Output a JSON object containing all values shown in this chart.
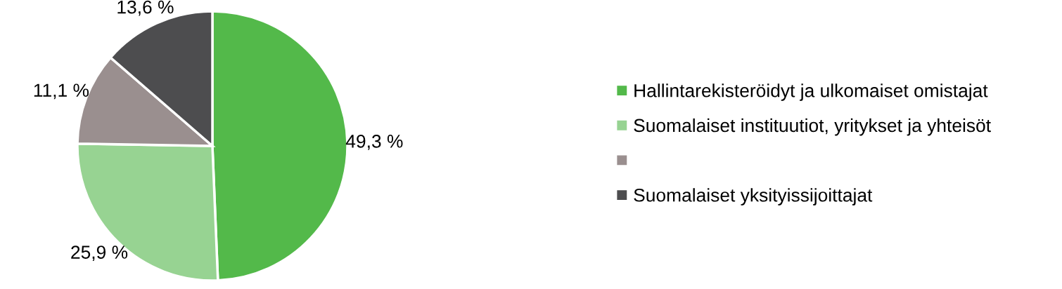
{
  "chart_data": {
    "type": "pie",
    "categories": [
      "Hallintarekisteröidyt ja ulkomaiset omistajat",
      "Suomalaiset instituutiot, yritykset ja yhteisöt",
      null,
      "Suomalaiset yksityissijoittajat"
    ],
    "values": [
      49.3,
      25.9,
      11.1,
      13.6
    ],
    "colors": [
      "#53b94a",
      "#97d392",
      "#9a8f8f",
      "#4d4d4f"
    ],
    "value_labels": [
      "49,3 %",
      "25,9 %",
      "11,1 %",
      "13,6 %"
    ],
    "legend": "right"
  }
}
